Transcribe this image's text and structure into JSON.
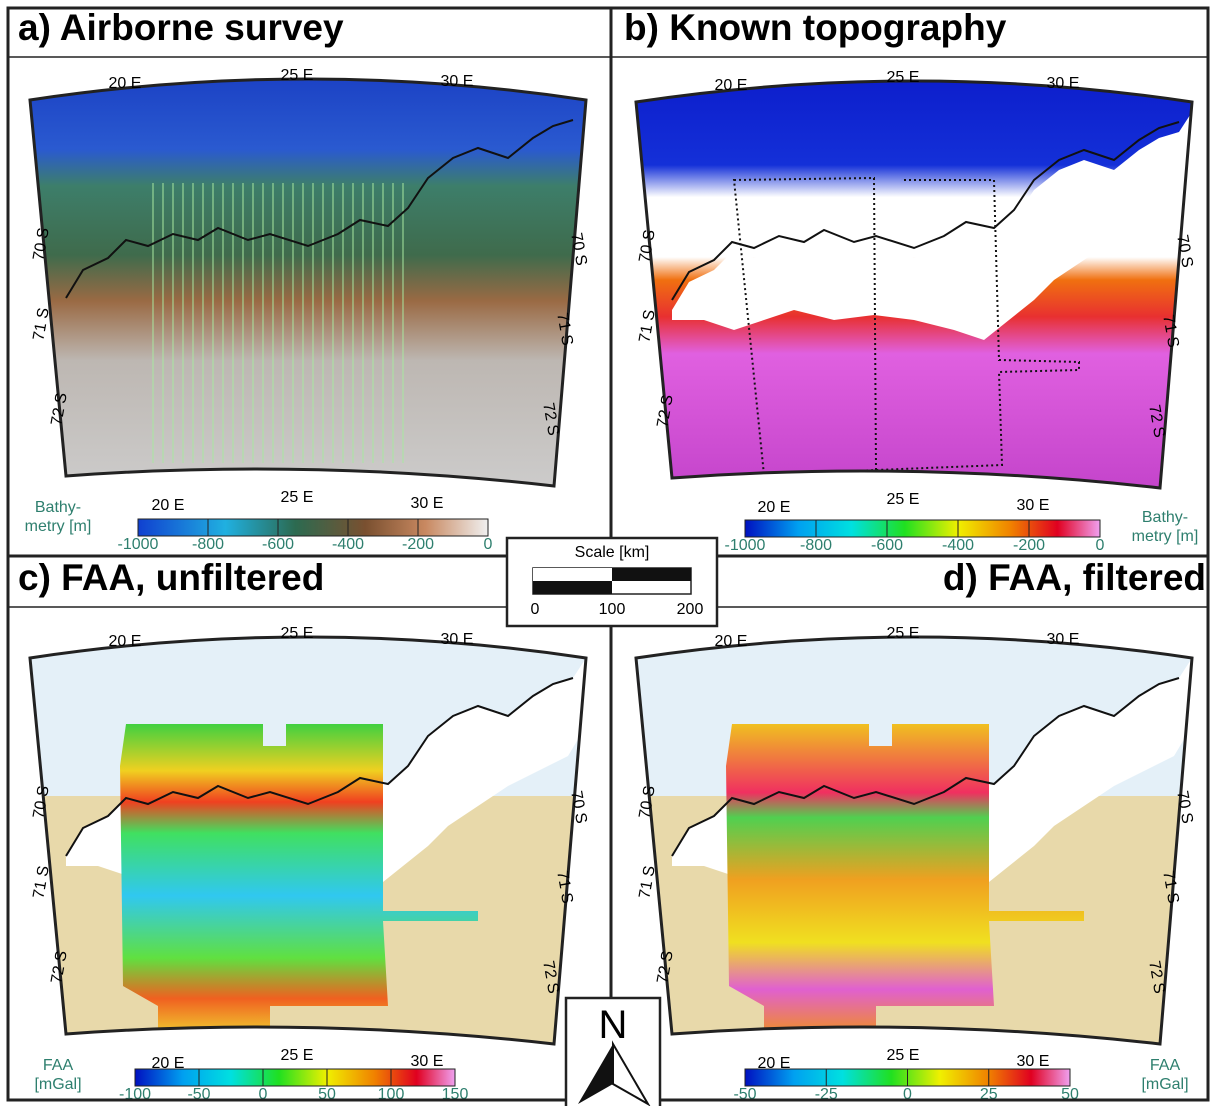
{
  "panels": [
    {
      "title": "a) Airborne survey",
      "lon_top": [
        "20 E",
        "25 E",
        "30 E"
      ],
      "lon_bottom": [
        "20 E",
        "25 E",
        "30 E"
      ],
      "lat_left": [
        "70 S",
        "71 S",
        "72 S"
      ],
      "lat_right": [
        "70 S",
        "71 S",
        "72 S"
      ],
      "colorbar": {
        "label": [
          "Bathy-",
          "metry [m]"
        ],
        "ticks": [
          "-1000",
          "-800",
          "-600",
          "-400",
          "-200",
          "0"
        ]
      }
    },
    {
      "title": "b) Known topography",
      "lon_top": [
        "20 E",
        "25 E",
        "30 E"
      ],
      "lon_bottom": [
        "20 E",
        "25 E",
        "30 E"
      ],
      "lat_left": [
        "70 S",
        "71 S",
        "72 S"
      ],
      "lat_right": [
        "70 S",
        "71 S",
        "72 S"
      ],
      "colorbar": {
        "label": [
          "Bathy-",
          "metry [m]"
        ],
        "ticks": [
          "-1000",
          "-800",
          "-600",
          "-400",
          "-200",
          "0"
        ]
      }
    },
    {
      "title": "c) FAA, unfiltered",
      "lon_top": [
        "20 E",
        "25 E",
        "30 E"
      ],
      "lon_bottom": [
        "20 E",
        "25 E",
        "30 E"
      ],
      "lat_left": [
        "70 S",
        "71 S",
        "72 S"
      ],
      "lat_right": [
        "70 S",
        "71 S",
        "72 S"
      ],
      "colorbar": {
        "label": [
          "FAA",
          "[mGal]"
        ],
        "ticks": [
          "-100",
          "-50",
          "0",
          "50",
          "100",
          "150"
        ]
      }
    },
    {
      "title": "d) FAA, filtered",
      "lon_top": [
        "20 E",
        "25 E",
        "30 E"
      ],
      "lon_bottom": [
        "20 E",
        "25 E",
        "30 E"
      ],
      "lat_left": [
        "70 S",
        "71 S",
        "72 S"
      ],
      "lat_right": [
        "70 S",
        "71 S",
        "72 S"
      ],
      "colorbar": {
        "label": [
          "FAA",
          "[mGal]"
        ],
        "ticks": [
          "-50",
          "-25",
          "0",
          "25",
          "50"
        ]
      }
    }
  ],
  "scale": {
    "title": "Scale [km]",
    "ticks": [
      "0",
      "100",
      "200"
    ]
  },
  "north": "N"
}
